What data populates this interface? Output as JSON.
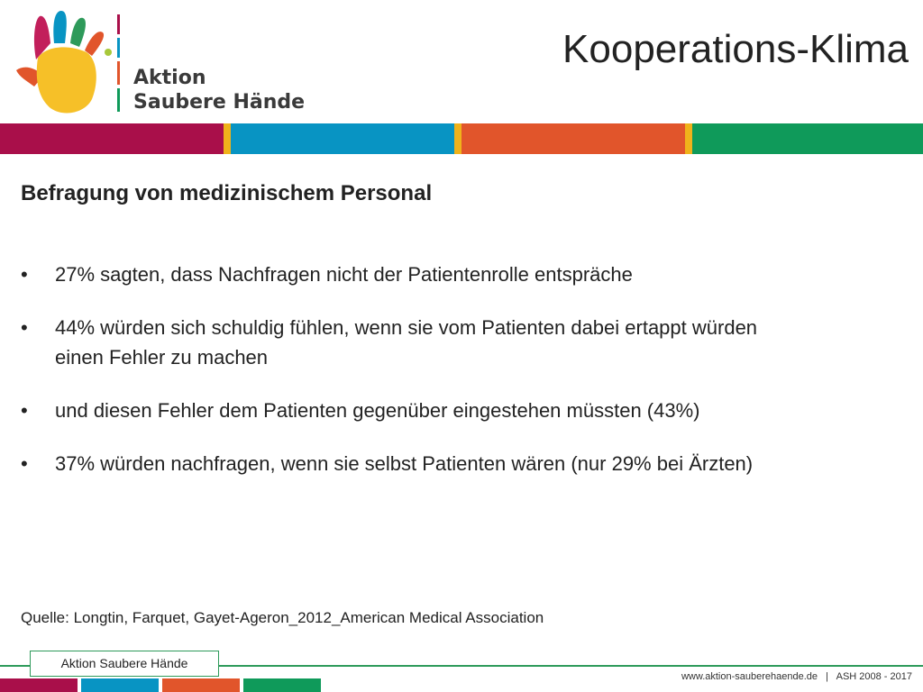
{
  "logo": {
    "line1": "Aktion",
    "line2": "Saubere Hände",
    "icon": "handprint-icon"
  },
  "slide": {
    "title": "Kooperations-Klima",
    "heading": "Befragung von medizinischem Personal",
    "bullets": [
      "27% sagten, dass Nachfragen nicht der Patientenrolle entspräche",
      "44% würden sich schuldig fühlen, wenn sie vom Patienten dabei ertappt würden einen Fehler zu machen",
      "und diesen Fehler dem Patienten gegenüber eingestehen müssten (43%)",
      "37% würden nachfragen, wenn sie selbst Patienten wären (nur 29% bei Ärzten)"
    ],
    "source": "Quelle: Longtin, Farquet, Gayet-Ageron_2012_American Medical Association"
  },
  "footer": {
    "label": "Aktion Saubere Hände",
    "url": "www.aktion-sauberehaende.de   |   ASH 2008 - 2017"
  },
  "colors": {
    "crimson": "#a90f4a",
    "blue": "#0894c3",
    "orange": "#e1552b",
    "green": "#0f9a5a",
    "yellow": "#f0b21b"
  }
}
